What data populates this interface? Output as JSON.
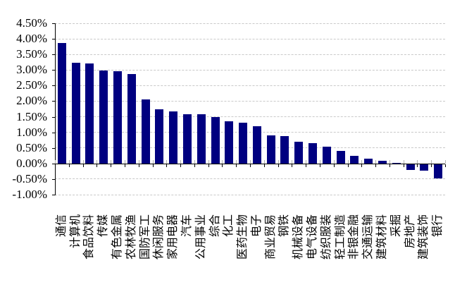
{
  "chart_data": {
    "type": "bar",
    "title": "",
    "xlabel": "",
    "ylabel": "",
    "legend": "none",
    "grid": "horizontal-dashed",
    "categories": [
      "通信",
      "计算机",
      "食品饮料",
      "传媒",
      "有色金属",
      "农林牧渔",
      "国防军工",
      "休闲服务",
      "家用电器",
      "汽车",
      "公用事业",
      "综合",
      "化工",
      "医药生物",
      "电子",
      "商业贸易",
      "钢铁",
      "机械设备",
      "电气设备",
      "纺织服装",
      "轻工制造",
      "非银金融",
      "交通运输",
      "建筑材料",
      "采掘",
      "房地产",
      "建筑装饰",
      "银行"
    ],
    "values": [
      3.86,
      3.23,
      3.21,
      2.98,
      2.95,
      2.87,
      2.05,
      1.73,
      1.68,
      1.59,
      1.58,
      1.48,
      1.36,
      1.3,
      1.2,
      0.89,
      0.87,
      0.7,
      0.66,
      0.55,
      0.41,
      0.25,
      0.16,
      0.08,
      0.02,
      -0.18,
      -0.2,
      -0.45
    ],
    "unit": "%",
    "ylim": [
      -1.0,
      4.5
    ],
    "ytick_step": 0.5,
    "y_tick_labels": [
      "4.50%",
      "4.00%",
      "3.50%",
      "3.00%",
      "2.50%",
      "2.00%",
      "1.50%",
      "1.00%",
      "0.50%",
      "0.00%",
      "-0.50%",
      "-1.00%"
    ],
    "bar_color": "#000080",
    "gridline_color": "#c9c9c9",
    "axis_color": "#000000"
  }
}
